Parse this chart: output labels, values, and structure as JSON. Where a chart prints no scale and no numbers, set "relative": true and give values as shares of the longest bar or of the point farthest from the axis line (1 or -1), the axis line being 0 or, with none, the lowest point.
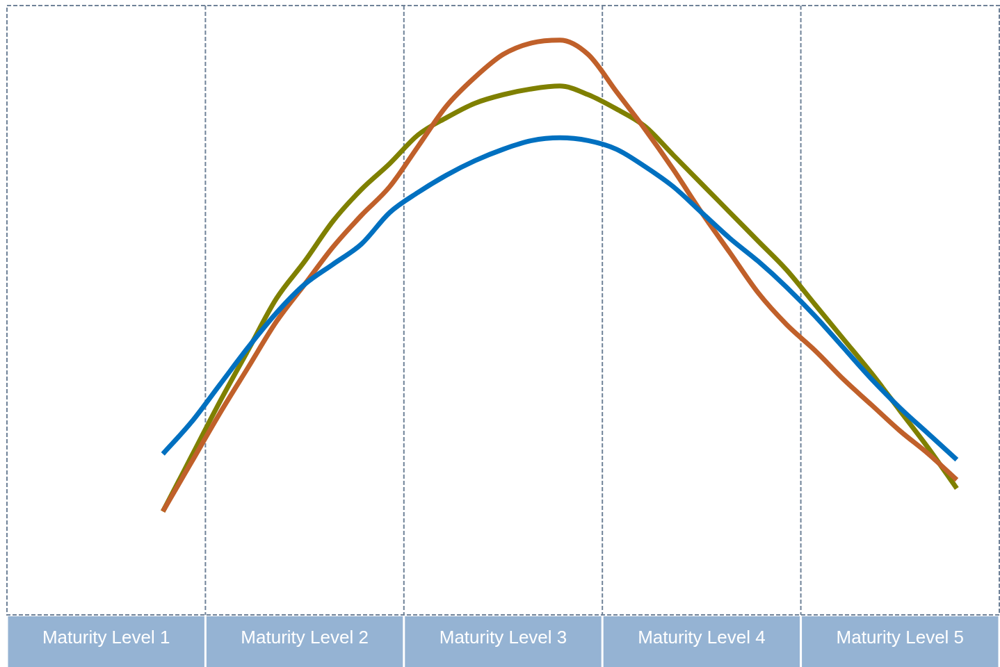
{
  "chart_data": {
    "type": "line",
    "relative": true,
    "grid": false,
    "legend": false,
    "marker": "none",
    "line_style": "solid",
    "categories": [
      null,
      null,
      null,
      "Maturity Level 1",
      null,
      null,
      null,
      null,
      null,
      null,
      "Maturity Level 2",
      null,
      null,
      null,
      null,
      null,
      null,
      "Maturity Level 3",
      null,
      null,
      null,
      null,
      null,
      null,
      "Maturity Level 4",
      null,
      null,
      null,
      null,
      null,
      null,
      "Maturity Level 5",
      null,
      null,
      null
    ],
    "series": [
      {
        "color": "#0070c0",
        "values": [
          null,
          null,
          null,
          null,
          null,
          0.28,
          0.335,
          0.4,
          0.465,
          0.525,
          0.575,
          0.61,
          0.645,
          0.7,
          0.735,
          0.765,
          0.79,
          0.81,
          0.825,
          0.83,
          0.825,
          0.81,
          0.78,
          0.745,
          0.7,
          0.655,
          0.615,
          0.57,
          0.52,
          0.465,
          0.41,
          0.36,
          0.315,
          0.27,
          null
        ]
      },
      {
        "color": "#c0602a",
        "values": [
          null,
          null,
          null,
          null,
          null,
          0.18,
          0.265,
          0.35,
          0.43,
          0.51,
          0.575,
          0.64,
          0.695,
          0.745,
          0.815,
          0.885,
          0.935,
          0.975,
          0.995,
          1.0,
          0.975,
          0.91,
          0.845,
          0.775,
          0.7,
          0.63,
          0.56,
          0.505,
          0.46,
          0.41,
          0.365,
          0.32,
          0.28,
          0.235,
          null
        ]
      },
      {
        "color": "#7f8000",
        "values": [
          null,
          null,
          null,
          null,
          null,
          0.18,
          0.275,
          0.37,
          0.46,
          0.55,
          0.615,
          0.685,
          0.74,
          0.785,
          0.835,
          0.865,
          0.89,
          0.905,
          0.915,
          0.92,
          0.905,
          0.88,
          0.85,
          0.8,
          0.75,
          0.7,
          0.65,
          0.6,
          0.54,
          0.48,
          0.42,
          0.355,
          0.29,
          0.22,
          null
        ]
      }
    ]
  }
}
